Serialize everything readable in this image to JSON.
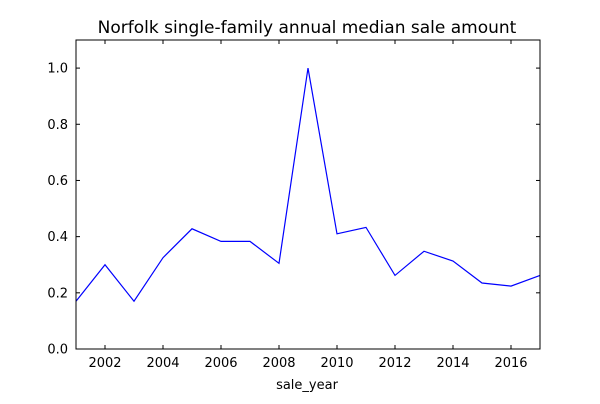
{
  "chart_data": {
    "type": "line",
    "title": "Norfolk single-family annual median sale amount",
    "xlabel": "sale_year",
    "ylabel": "",
    "xlim": [
      2001,
      2017
    ],
    "ylim": [
      0.0,
      1.1
    ],
    "x_ticks": [
      2002,
      2004,
      2006,
      2008,
      2010,
      2012,
      2014,
      2016
    ],
    "y_ticks": [
      0.0,
      0.2,
      0.4,
      0.6,
      0.8,
      1.0
    ],
    "grid": false,
    "series": [
      {
        "color": "#0000ff",
        "x": [
          2001,
          2002,
          2003,
          2004,
          2005,
          2006,
          2007,
          2008,
          2009,
          2010,
          2011,
          2012,
          2013,
          2014,
          2015,
          2016,
          2017
        ],
        "y": [
          0.17,
          0.3,
          0.17,
          0.325,
          0.428,
          0.383,
          0.383,
          0.305,
          1.0,
          0.41,
          0.433,
          0.262,
          0.348,
          0.313,
          0.235,
          0.224,
          0.262
        ]
      }
    ]
  }
}
